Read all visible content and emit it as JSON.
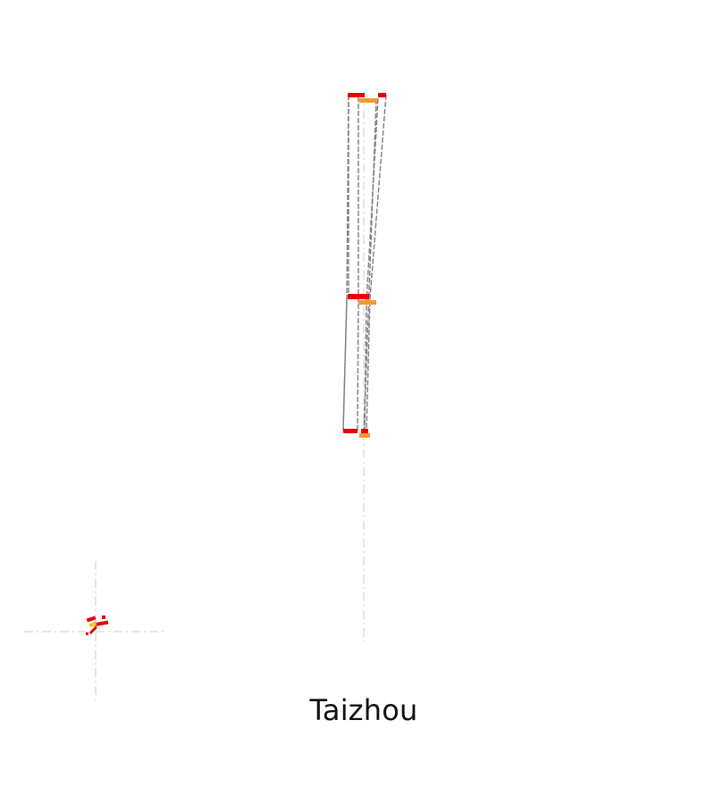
{
  "caption": "Taizhou",
  "colors": {
    "background": "#ffffff",
    "guide": "#d8d8d8",
    "outline": "#7f7f7f",
    "red": "#e60000",
    "orange": "#f39a33",
    "yellow": "#f3c12b"
  }
}
